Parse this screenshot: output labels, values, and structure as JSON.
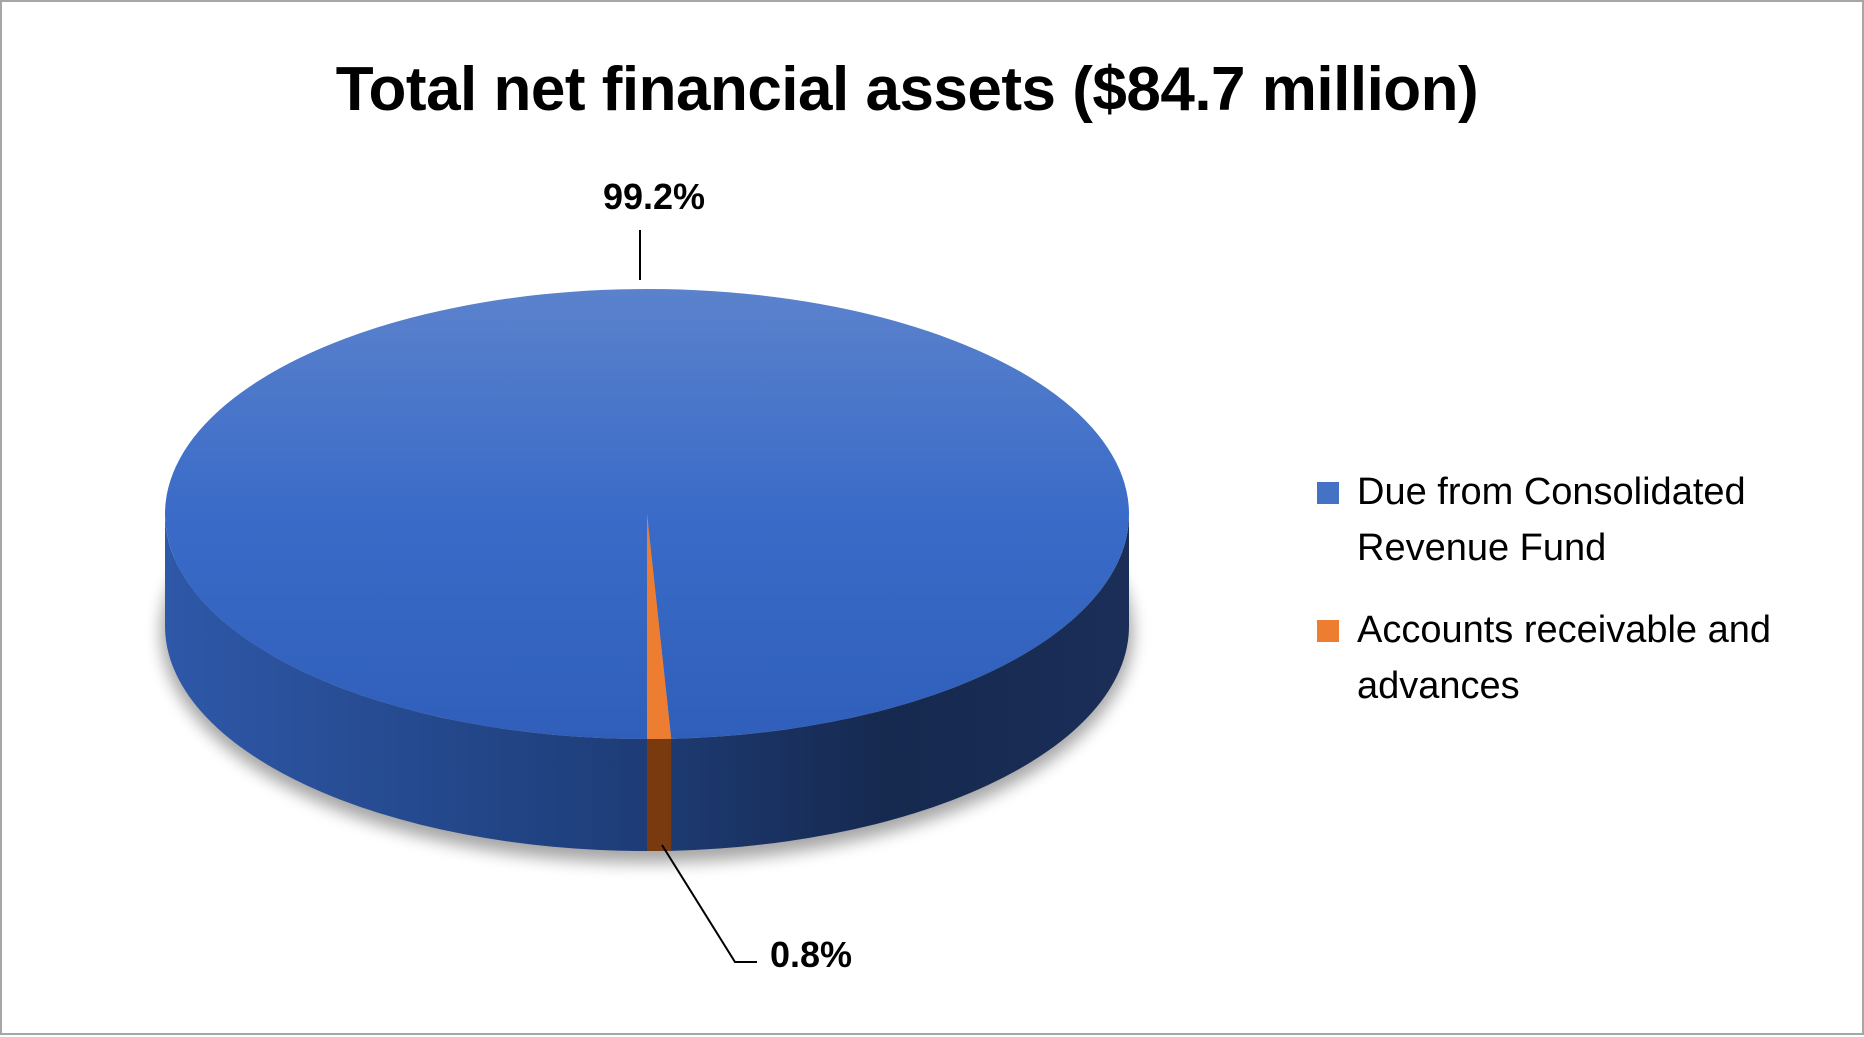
{
  "chart_data": {
    "type": "pie",
    "title": "Total net financial assets ($84.7 million)",
    "categories": [
      "Due from Consolidated Revenue Fund",
      "Accounts receivable and advances"
    ],
    "values": [
      99.2,
      0.8
    ],
    "data_labels": [
      "99.2%",
      "0.8%"
    ],
    "colors": [
      "#4472c4",
      "#ed7d31"
    ],
    "legend_position": "right",
    "style": "3d-pie"
  }
}
